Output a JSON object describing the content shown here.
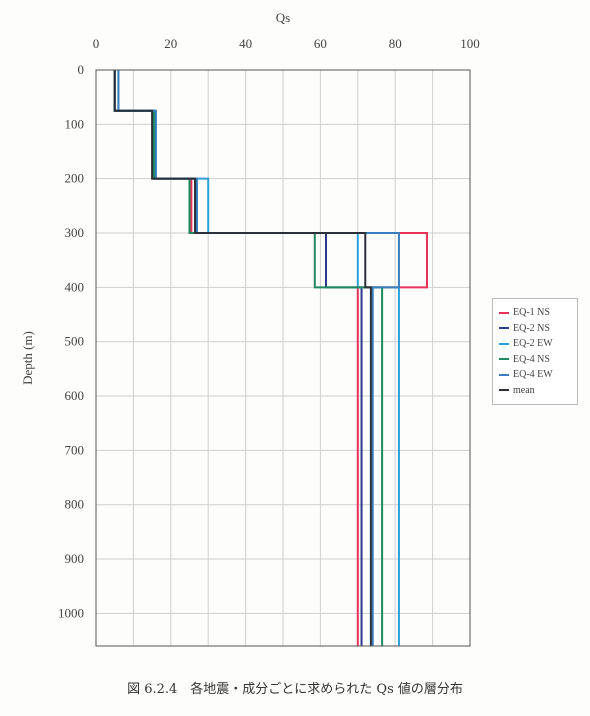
{
  "caption": "図 6.2.4　各地震・成分ごとに求められた Qs 値の層分布",
  "chart_data": {
    "type": "line",
    "xlabel": "Qs",
    "ylabel": "Depth (m)",
    "xlim": [
      0,
      100
    ],
    "ylim": [
      0,
      1060
    ],
    "y_inverted": true,
    "x_axis_position": "top",
    "xticks": [
      "0",
      "20",
      "40",
      "60",
      "80",
      "100"
    ],
    "yticks": [
      "0",
      "100",
      "200",
      "300",
      "400",
      "500",
      "600",
      "700",
      "800",
      "900",
      "1000"
    ],
    "grid": true,
    "legend_position": "right",
    "series": [
      {
        "name": "EQ-1 NS",
        "color": "#e8325a",
        "layers": [
          [
            0,
            75,
            5
          ],
          [
            75,
            200,
            15.5
          ],
          [
            200,
            300,
            25.5
          ],
          [
            300,
            400,
            88.5
          ],
          [
            400,
            1060,
            70
          ]
        ]
      },
      {
        "name": "EQ-2 NS",
        "color": "#2b3a8c",
        "layers": [
          [
            0,
            75,
            5
          ],
          [
            75,
            200,
            15.5
          ],
          [
            200,
            300,
            26.5
          ],
          [
            300,
            400,
            61.5
          ],
          [
            400,
            1060,
            71
          ]
        ]
      },
      {
        "name": "EQ-2 EW",
        "color": "#2aa0dc",
        "layers": [
          [
            0,
            75,
            6
          ],
          [
            75,
            200,
            16
          ],
          [
            200,
            300,
            30
          ],
          [
            300,
            400,
            70
          ],
          [
            400,
            1060,
            81
          ]
        ]
      },
      {
        "name": "EQ-4 NS",
        "color": "#1f8a5e",
        "layers": [
          [
            0,
            75,
            5
          ],
          [
            75,
            200,
            15.5
          ],
          [
            200,
            300,
            25
          ],
          [
            300,
            400,
            58.5
          ],
          [
            400,
            1060,
            76.5
          ]
        ]
      },
      {
        "name": "EQ-4 EW",
        "color": "#3a7fbd",
        "layers": [
          [
            0,
            75,
            6
          ],
          [
            75,
            200,
            16
          ],
          [
            200,
            300,
            27
          ],
          [
            300,
            400,
            81
          ],
          [
            400,
            1060,
            74
          ]
        ]
      },
      {
        "name": "mean",
        "color": "#2a2f38",
        "layers": [
          [
            0,
            75,
            5
          ],
          [
            75,
            200,
            15
          ],
          [
            200,
            300,
            26.5
          ],
          [
            300,
            400,
            72
          ],
          [
            400,
            1060,
            73.5
          ]
        ]
      }
    ]
  }
}
